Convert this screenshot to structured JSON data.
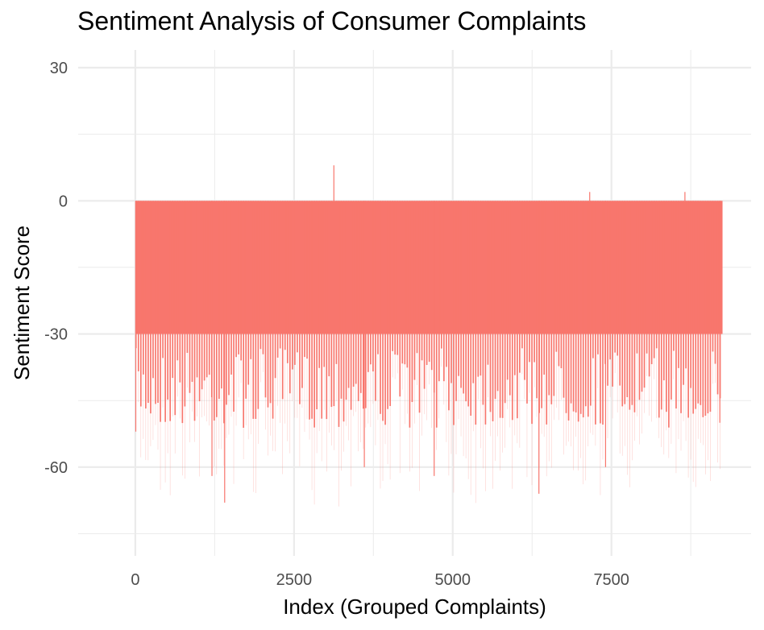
{
  "chart_data": {
    "type": "bar",
    "title": "Sentiment Analysis of Consumer Complaints",
    "xlabel": "Index (Grouped Complaints)",
    "ylabel": "Sentiment Score",
    "xlim": [
      -900,
      9700
    ],
    "ylim": [
      -80,
      34
    ],
    "x_ticks": [
      0,
      2500,
      5000,
      7500
    ],
    "x_tick_labels": [
      "0",
      "2500",
      "5000",
      "7500"
    ],
    "y_ticks": [
      30,
      0,
      -30,
      -60
    ],
    "y_tick_labels": [
      "30",
      "0",
      "-30",
      "-60"
    ],
    "grid": true,
    "colors": {
      "bar": "#F8766D",
      "grid": "#EBEBEB"
    },
    "index_range": [
      0,
      9250
    ],
    "bar_count": 240,
    "bar_step": 38.5,
    "typical_min": -38,
    "typical_max": -30,
    "notable_points": [
      {
        "x": 3120,
        "y": 8
      },
      {
        "x": 7150,
        "y": 2
      },
      {
        "x": 8650,
        "y": 2
      },
      {
        "x": 1400,
        "y": -68
      },
      {
        "x": 6350,
        "y": -66
      },
      {
        "x": 1200,
        "y": -62
      },
      {
        "x": 3600,
        "y": -60
      },
      {
        "x": 4700,
        "y": -62
      },
      {
        "x": 7400,
        "y": -60
      },
      {
        "x": 0,
        "y": -52
      },
      {
        "x": 9200,
        "y": -50
      }
    ]
  }
}
